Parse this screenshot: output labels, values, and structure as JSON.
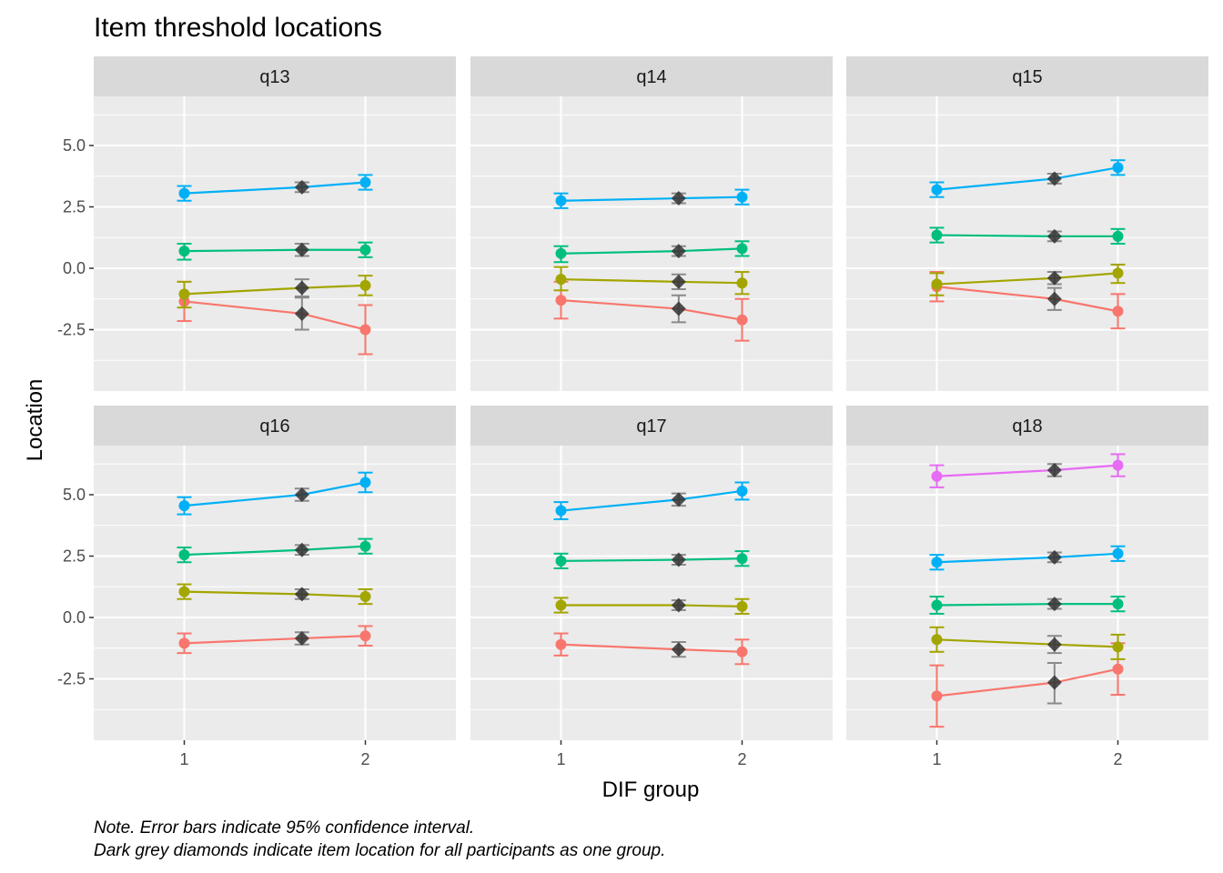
{
  "chart_data": {
    "type": "line",
    "title": "Item threshold locations",
    "xlabel": "DIF group",
    "ylabel": "Location",
    "caption": [
      "Note. Error bars indicate 95% confidence interval.",
      "Dark grey diamonds indicate item location for all participants as one group."
    ],
    "x_ticks": [
      1,
      2
    ],
    "x_tick_labels": [
      "1",
      "2"
    ],
    "xlim": [
      0.5,
      2.5
    ],
    "y_ticks": [
      -2.5,
      0,
      2.5,
      5
    ],
    "y_tick_labels": [
      "-2.5",
      "0.0",
      "2.5",
      "5.0"
    ],
    "ylim": [
      -5,
      7
    ],
    "grid": true,
    "threshold_colors": [
      "#F8766D",
      "#A3A500",
      "#00BF7D",
      "#00B0F6",
      "#E76BF3"
    ],
    "overall_color": "#333333",
    "overall_x": 1.65,
    "facets": [
      {
        "label": "q13",
        "thresholds": [
          {
            "g1": [
              -1.35,
              -2.15,
              -0.55
            ],
            "g2": [
              -2.5,
              -3.5,
              -1.5
            ],
            "all": [
              -1.85,
              -2.5,
              -1.2
            ]
          },
          {
            "g1": [
              -1.05,
              -1.6,
              -0.55
            ],
            "g2": [
              -0.7,
              -1.1,
              -0.3
            ],
            "all": [
              -0.8,
              -1.15,
              -0.45
            ]
          },
          {
            "g1": [
              0.7,
              0.35,
              1.0
            ],
            "g2": [
              0.75,
              0.45,
              1.05
            ],
            "all": [
              0.75,
              0.5,
              1.0
            ]
          },
          {
            "g1": [
              3.05,
              2.75,
              3.35
            ],
            "g2": [
              3.5,
              3.2,
              3.8
            ],
            "all": [
              3.3,
              3.1,
              3.5
            ]
          }
        ]
      },
      {
        "label": "q14",
        "thresholds": [
          {
            "g1": [
              -1.3,
              -2.05,
              -0.55
            ],
            "g2": [
              -2.1,
              -2.95,
              -1.25
            ],
            "all": [
              -1.65,
              -2.2,
              -1.1
            ]
          },
          {
            "g1": [
              -0.45,
              -0.9,
              0.05
            ],
            "g2": [
              -0.6,
              -1.05,
              -0.15
            ],
            "all": [
              -0.55,
              -0.85,
              -0.25
            ]
          },
          {
            "g1": [
              0.6,
              0.25,
              0.9
            ],
            "g2": [
              0.8,
              0.5,
              1.1
            ],
            "all": [
              0.7,
              0.5,
              0.9
            ]
          },
          {
            "g1": [
              2.75,
              2.45,
              3.05
            ],
            "g2": [
              2.9,
              2.6,
              3.2
            ],
            "all": [
              2.85,
              2.65,
              3.05
            ]
          }
        ]
      },
      {
        "label": "q15",
        "thresholds": [
          {
            "g1": [
              -0.75,
              -1.35,
              -0.15
            ],
            "g2": [
              -1.75,
              -2.45,
              -1.05
            ],
            "all": [
              -1.25,
              -1.7,
              -0.8
            ]
          },
          {
            "g1": [
              -0.65,
              -1.1,
              -0.2
            ],
            "g2": [
              -0.2,
              -0.6,
              0.15
            ],
            "all": [
              -0.4,
              -0.65,
              -0.15
            ]
          },
          {
            "g1": [
              1.35,
              1.05,
              1.65
            ],
            "g2": [
              1.3,
              1.0,
              1.6
            ],
            "all": [
              1.3,
              1.1,
              1.5
            ]
          },
          {
            "g1": [
              3.2,
              2.9,
              3.5
            ],
            "g2": [
              4.1,
              3.8,
              4.4
            ],
            "all": [
              3.65,
              3.45,
              3.85
            ]
          }
        ]
      },
      {
        "label": "q16",
        "thresholds": [
          {
            "g1": [
              -1.05,
              -1.45,
              -0.65
            ],
            "g2": [
              -0.75,
              -1.15,
              -0.35
            ],
            "all": [
              -0.85,
              -1.1,
              -0.6
            ]
          },
          {
            "g1": [
              1.05,
              0.75,
              1.35
            ],
            "g2": [
              0.85,
              0.55,
              1.15
            ],
            "all": [
              0.95,
              0.75,
              1.15
            ]
          },
          {
            "g1": [
              2.55,
              2.25,
              2.85
            ],
            "g2": [
              2.9,
              2.6,
              3.2
            ],
            "all": [
              2.75,
              2.55,
              2.95
            ]
          },
          {
            "g1": [
              4.55,
              4.2,
              4.9
            ],
            "g2": [
              5.5,
              5.1,
              5.9
            ],
            "all": [
              5.0,
              4.75,
              5.25
            ]
          }
        ]
      },
      {
        "label": "q17",
        "thresholds": [
          {
            "g1": [
              -1.1,
              -1.55,
              -0.65
            ],
            "g2": [
              -1.4,
              -1.9,
              -0.9
            ],
            "all": [
              -1.3,
              -1.6,
              -1.0
            ]
          },
          {
            "g1": [
              0.5,
              0.2,
              0.8
            ],
            "g2": [
              0.45,
              0.15,
              0.75
            ],
            "all": [
              0.5,
              0.3,
              0.7
            ]
          },
          {
            "g1": [
              2.3,
              2.0,
              2.6
            ],
            "g2": [
              2.4,
              2.1,
              2.7
            ],
            "all": [
              2.35,
              2.15,
              2.55
            ]
          },
          {
            "g1": [
              4.35,
              4.0,
              4.7
            ],
            "g2": [
              5.15,
              4.8,
              5.5
            ],
            "all": [
              4.8,
              4.55,
              5.05
            ]
          }
        ]
      },
      {
        "label": "q18",
        "thresholds": [
          {
            "g1": [
              -3.2,
              -4.45,
              -1.95
            ],
            "g2": [
              -2.1,
              -3.15,
              -1.05
            ],
            "all": [
              -2.65,
              -3.5,
              -1.85
            ]
          },
          {
            "g1": [
              -0.9,
              -1.4,
              -0.4
            ],
            "g2": [
              -1.2,
              -1.7,
              -0.7
            ],
            "all": [
              -1.1,
              -1.45,
              -0.75
            ]
          },
          {
            "g1": [
              0.5,
              0.15,
              0.85
            ],
            "g2": [
              0.55,
              0.25,
              0.85
            ],
            "all": [
              0.55,
              0.35,
              0.75
            ]
          },
          {
            "g1": [
              2.25,
              1.95,
              2.55
            ],
            "g2": [
              2.6,
              2.3,
              2.9
            ],
            "all": [
              2.45,
              2.25,
              2.65
            ]
          },
          {
            "g1": [
              5.75,
              5.3,
              6.2
            ],
            "g2": [
              6.2,
              5.75,
              6.65
            ],
            "all": [
              6.0,
              5.75,
              6.25
            ]
          }
        ]
      }
    ]
  }
}
